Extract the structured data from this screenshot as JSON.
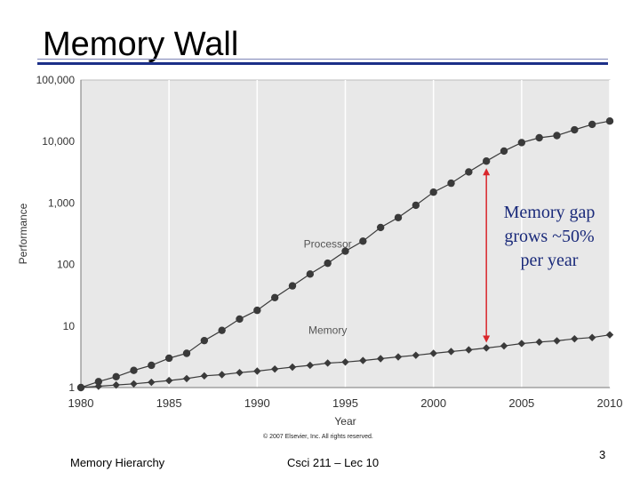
{
  "slide": {
    "title": "Memory Wall",
    "footer_left": "Memory Hierarchy",
    "footer_center": "Csci 211 – Lec 10",
    "page_number": "3",
    "copyright": "© 2007 Elsevier, Inc. All rights reserved."
  },
  "annotation": {
    "lines": [
      "Memory gap",
      "grows ~50%",
      "per year"
    ],
    "color": "#1a2a7a",
    "arrow_color": "#d9262b",
    "arrow_year": 2003
  },
  "chart_data": {
    "type": "line",
    "xlabel": "Year",
    "ylabel": "Performance",
    "yscale": "log",
    "xlim": [
      1980,
      2010
    ],
    "ylim": [
      1,
      100000
    ],
    "x_ticks": [
      1980,
      1985,
      1990,
      1995,
      2000,
      2005,
      2010
    ],
    "x_tick_labels": [
      "1980",
      "1985",
      "1990",
      "1995",
      "2000",
      "2005",
      "2010"
    ],
    "y_ticks": [
      1,
      10,
      100,
      1000,
      10000,
      100000
    ],
    "y_tick_labels": [
      "1",
      "10",
      "100",
      "1,000",
      "10,000",
      "100,000"
    ],
    "grid": "vertical",
    "background": "#e8e8e8",
    "series": [
      {
        "name": "Processor",
        "color": "#3a3a3a",
        "marker": "circle",
        "x": [
          1980,
          1981,
          1982,
          1983,
          1984,
          1985,
          1986,
          1987,
          1988,
          1989,
          1990,
          1991,
          1992,
          1993,
          1994,
          1995,
          1996,
          1997,
          1998,
          1999,
          2000,
          2001,
          2002,
          2003,
          2004,
          2005,
          2006,
          2007,
          2008,
          2009,
          2010
        ],
        "values": [
          1,
          1.25,
          1.5,
          1.9,
          2.3,
          3.0,
          3.6,
          5.8,
          8.5,
          13,
          18,
          29,
          45,
          70,
          105,
          165,
          240,
          400,
          580,
          920,
          1500,
          2100,
          3200,
          4800,
          7000,
          9600,
          11500,
          12500,
          15500,
          19000,
          21500
        ]
      },
      {
        "name": "Memory",
        "color": "#3a3a3a",
        "marker": "diamond",
        "x": [
          1980,
          1981,
          1982,
          1983,
          1984,
          1985,
          1986,
          1987,
          1988,
          1989,
          1990,
          1991,
          1992,
          1993,
          1994,
          1995,
          1996,
          1997,
          1998,
          1999,
          2000,
          2001,
          2002,
          2003,
          2004,
          2005,
          2006,
          2007,
          2008,
          2009,
          2010
        ],
        "values": [
          1,
          1.05,
          1.1,
          1.15,
          1.22,
          1.3,
          1.4,
          1.55,
          1.62,
          1.75,
          1.85,
          2.0,
          2.15,
          2.3,
          2.5,
          2.6,
          2.75,
          2.95,
          3.15,
          3.35,
          3.6,
          3.85,
          4.1,
          4.4,
          4.75,
          5.2,
          5.5,
          5.75,
          6.2,
          6.5,
          7.2
        ]
      }
    ],
    "series_labels": [
      {
        "text": "Processor",
        "x": 1994,
        "y": 190
      },
      {
        "text": "Memory",
        "x": 1994,
        "y": 7.5
      }
    ]
  }
}
